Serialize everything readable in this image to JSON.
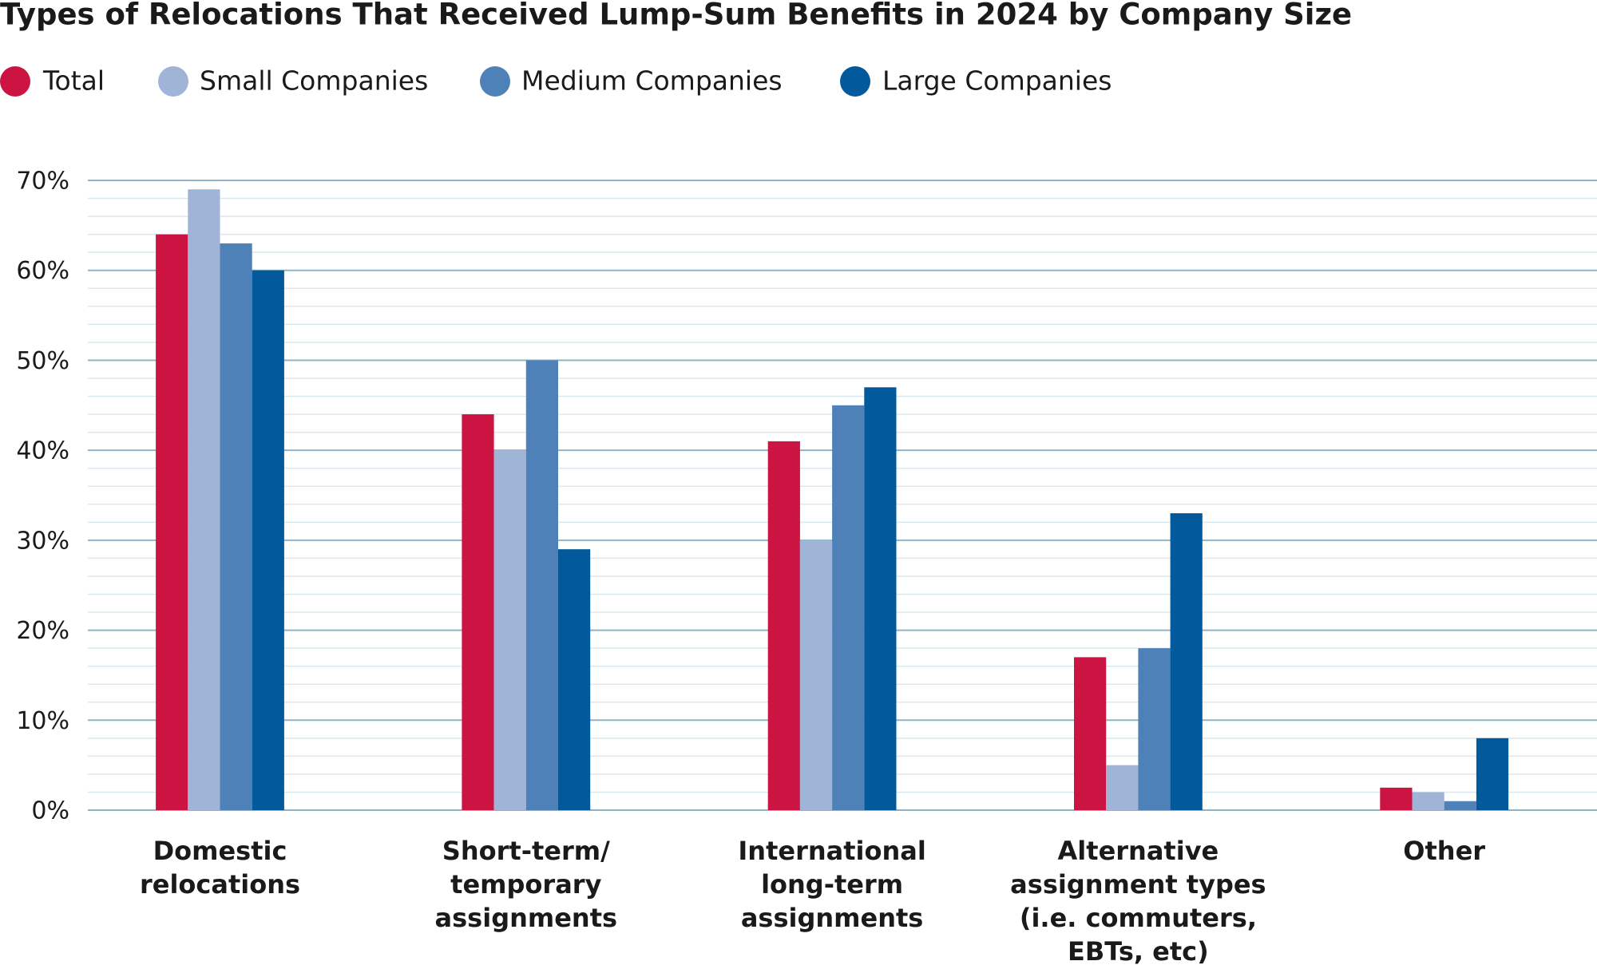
{
  "chart_data": {
    "type": "bar",
    "title": "Types of Relocations That Received Lump-Sum Benefits in 2024 by Company Size",
    "categories": [
      "Domestic\nrelocations",
      "Short-term/\ntemporary\nassignments",
      "International\nlong-term\nassignments",
      "Alternative\nassignment types\n(i.e. commuters,\nEBTs, etc)",
      "Other"
    ],
    "series": [
      {
        "name": "Total",
        "color": "#cc1443",
        "values": [
          64,
          44,
          41,
          17,
          2.5
        ]
      },
      {
        "name": "Small Companies",
        "color": "#a0b4d7",
        "values": [
          69,
          40,
          30,
          5,
          2
        ]
      },
      {
        "name": "Medium Companies",
        "color": "#4f81b9",
        "values": [
          63,
          50,
          45,
          18,
          1
        ]
      },
      {
        "name": "Large Companies",
        "color": "#025a9c",
        "values": [
          60,
          29,
          47,
          33,
          8
        ]
      }
    ],
    "ylim": [
      0,
      70
    ],
    "yticks": [
      {
        "value": 0,
        "label": "0%"
      },
      {
        "value": 10,
        "label": "10%"
      },
      {
        "value": 20,
        "label": "20%"
      },
      {
        "value": 30,
        "label": "30%"
      },
      {
        "value": 40,
        "label": "40%"
      },
      {
        "value": 50,
        "label": "50%"
      },
      {
        "value": 60,
        "label": "60%"
      },
      {
        "value": 70,
        "label": "70%"
      }
    ],
    "grid": true,
    "minor_grid": true,
    "legend": "top-left"
  }
}
